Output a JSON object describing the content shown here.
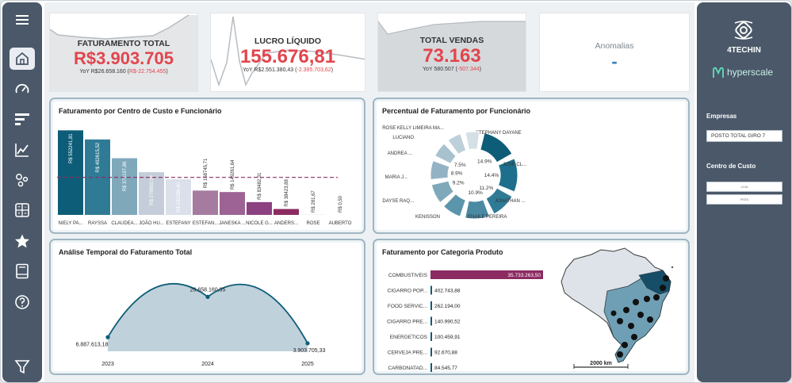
{
  "nav": {
    "icons": [
      "menu-icon",
      "home-icon",
      "gauge-icon",
      "bar-list-icon",
      "line-chart-icon",
      "scatter-icon",
      "calculator-icon",
      "star-icon",
      "book-icon",
      "help-icon",
      "filter-icon"
    ]
  },
  "kpis": {
    "faturamento": {
      "title": "FATURAMENTO TOTAL",
      "value": "R$3.903.705",
      "yoy_prefix": "YoY R$26.658.160 (",
      "yoy_delta": "R$-22.754.455",
      "yoy_suffix": ")"
    },
    "lucro": {
      "title": "LUCRO LÍQUIDO",
      "value": "155.676,81",
      "yoy_prefix": "YoY R$2.551.380,43 (",
      "yoy_delta": "-2.395.703,62",
      "yoy_suffix": ")"
    },
    "vendas": {
      "title": "TOTAL VENDAS",
      "value": "73.163",
      "yoy_prefix": "YoY 580.507 (",
      "yoy_delta": "-507.344",
      "yoy_suffix": ")"
    },
    "anomalias": {
      "title": "Anomalias",
      "value": "-"
    }
  },
  "colors": {
    "accent_red": "#e2454d",
    "teal_dark": "#0e5d78",
    "purple": "#8c2b62",
    "nav_bg": "#4a5869"
  },
  "cards": {
    "bar_by_cc": {
      "title": "Faturamento por Centro de Custo e Funcionário"
    },
    "donut": {
      "title": "Percentual de Faturamento por Funcionário"
    },
    "temporal": {
      "title": "Análise Temporal do Faturamento Total"
    },
    "category": {
      "title": "Faturamento por Categoria Produto"
    }
  },
  "chart_data": [
    {
      "type": "bar",
      "title": "Faturamento por Centro de Custo e Funcionário",
      "categories": [
        "NIELY PA...",
        "RAYSSA",
        "CLAUDEA...",
        "JOÃO HU...",
        "ESTEFANY",
        "ESTEFAN...",
        "JANESKA ...",
        "NICOLE G...",
        "ANDERS...",
        "ROSE",
        "AUBERTO"
      ],
      "values": [
        552241.81,
        492615.52,
        370197.86,
        278893.09,
        232296.4,
        158745.71,
        149261.64,
        83482.31,
        38423.88,
        281.67,
        0.5
      ],
      "value_labels": [
        "R$ 552241,81",
        "R$ 492615,52",
        "R$ 370197,86",
        "R$ 278893,09",
        "R$ 232296,40",
        "R$ 158745,71",
        "R$ 149261,64",
        "R$ 83482,31",
        "R$ 38423,88",
        "R$ 281,67",
        "R$ 0,50"
      ],
      "colors": [
        "#0e5d78",
        "#2f7b96",
        "#7fa9bb",
        "#c4cdd9",
        "#dbe0ea",
        "#a67ba0",
        "#9c6394",
        "#8c4181",
        "#8c2b62",
        "#8c2b62",
        "#8c2b62"
      ],
      "average_line": 245000,
      "ylim": [
        0,
        580000
      ]
    },
    {
      "type": "pie",
      "title": "Percentual de Faturamento por Funcionário",
      "labels": [
        "STEPHANY DAYANE",
        "JOSÉ CL...",
        "JONATHAN ...",
        "ENAILE PEREIRA",
        "KENISSON",
        "DAYSE RAQ...",
        "MARIA J...",
        "ANDREA ...",
        "LUCIANO",
        "ROSE KELLY LIMEIRA MA..."
      ],
      "values": [
        14.9,
        14.4,
        11.2,
        10.9,
        9.0,
        9.2,
        8.9,
        7.5,
        7.0,
        7.0
      ],
      "percent_labels": [
        "14.9%",
        "14.4%",
        "11.2%",
        "10.9%",
        "",
        "9.2%",
        "8.9%",
        "7.5%",
        "",
        ""
      ],
      "colors": [
        "#0e5d78",
        "#1d6f8c",
        "#2f7b96",
        "#4a8aa3",
        "#5a95ac",
        "#7fa9bb",
        "#93b3c4",
        "#a8c1ce",
        "#bdd0da",
        "#d4dfe6"
      ]
    },
    {
      "type": "area",
      "title": "Análise Temporal do Faturamento Total",
      "x": [
        "2023",
        "2024",
        "2025"
      ],
      "values": [
        6887613.18,
        26658160.35,
        3903705.33
      ],
      "value_labels": [
        "6.887.613,18",
        "26.658.160,35",
        "3.903.705,33"
      ]
    },
    {
      "type": "bar",
      "title": "Faturamento por Categoria Produto",
      "categories": [
        "COMBUSTIVEIS",
        "CIGARRO POP...",
        "FOOD SERVIC...",
        "CIGARRO PRE...",
        "ENERGETICOS",
        "CERVEJA PRE...",
        "CARBONATAD..."
      ],
      "values": [
        35733263.5,
        402743.88,
        262194.0,
        140990.52,
        100459.91,
        92670.88,
        84545.77
      ],
      "value_labels": [
        "35.733.263,50",
        "402.743,88",
        "262.194,00",
        "140.990,52",
        "100.459,91",
        "92.670,88",
        "84.545,77"
      ],
      "colors": [
        "#8c2b62",
        "#0e5d78",
        "#0e5d78",
        "#0e5d78",
        "#0e5d78",
        "#0e5d78",
        "#0e5d78"
      ]
    }
  ],
  "map": {
    "scale_label": "2000 km"
  },
  "right": {
    "brand": "4TECHIN",
    "partner": "hyperscale",
    "empresas_label": "Empresas",
    "empresa_value": "POSTO TOTAL GIRO 7",
    "cc_label": "Centro de Custo",
    "cc_options": [
      "LOJA",
      "PISTA"
    ]
  }
}
